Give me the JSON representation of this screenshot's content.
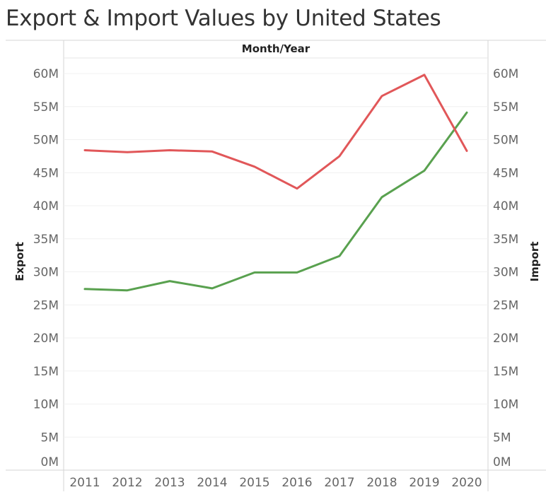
{
  "title": "Export & Import Values by United States",
  "chart_data": {
    "type": "line",
    "header": "Month/Year",
    "categories": [
      "2011",
      "2012",
      "2013",
      "2014",
      "2015",
      "2016",
      "2017",
      "2018",
      "2019",
      "2020"
    ],
    "y_left_label": "Export",
    "y_right_label": "Import",
    "yticks": [
      "0M",
      "5M",
      "10M",
      "15M",
      "20M",
      "25M",
      "30M",
      "35M",
      "40M",
      "45M",
      "50M",
      "55M",
      "60M"
    ],
    "ylim": [
      0,
      60
    ],
    "y_unit": "M",
    "grid": true,
    "series": [
      {
        "axis": "left",
        "color": "#59a14f",
        "values": [
          27.4,
          27.2,
          28.6,
          27.5,
          29.9,
          29.9,
          32.4,
          41.3,
          45.3,
          54.1
        ]
      },
      {
        "axis": "right",
        "color": "#e15759",
        "values": [
          48.4,
          48.1,
          48.4,
          48.2,
          45.9,
          42.6,
          47.5,
          56.6,
          59.8,
          48.3
        ]
      }
    ]
  }
}
